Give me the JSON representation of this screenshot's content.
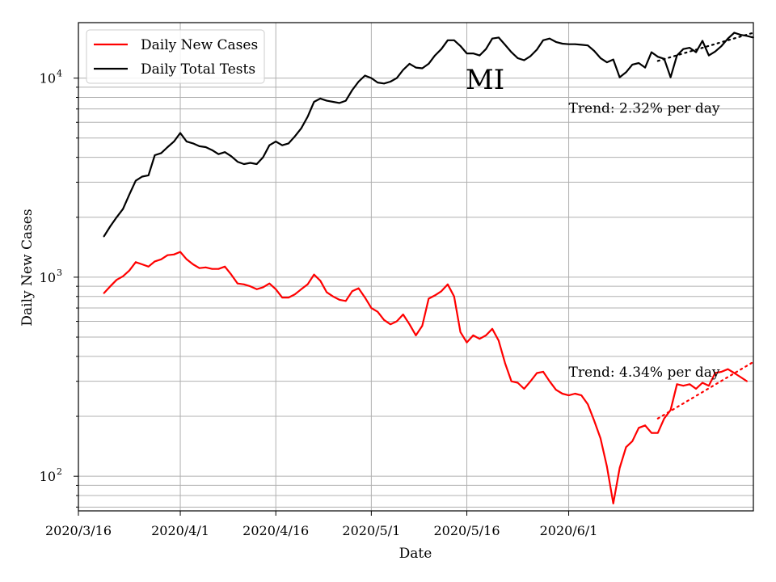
{
  "chart_data": {
    "type": "line",
    "title": "MI",
    "xlabel": "Date",
    "ylabel": "Daily New Cases",
    "yscale": "log",
    "ylim": [
      67,
      19000
    ],
    "xlim": [
      "2020-03-16",
      "2020-06-30"
    ],
    "x_ticks": [
      {
        "date": "2020-03-16",
        "label": "2020/3/16"
      },
      {
        "date": "2020-04-01",
        "label": "2020/4/1"
      },
      {
        "date": "2020-04-16",
        "label": "2020/4/16"
      },
      {
        "date": "2020-05-01",
        "label": "2020/5/1"
      },
      {
        "date": "2020-05-16",
        "label": "2020/5/16"
      },
      {
        "date": "2020-06-01",
        "label": "2020/6/1"
      }
    ],
    "x_grid_dates": [
      "2020-04-01",
      "2020-04-16",
      "2020-05-01",
      "2020-05-16",
      "2020-06-01"
    ],
    "y_ticks": [
      {
        "value": 100,
        "base": "10",
        "exp": "2"
      },
      {
        "value": 1000,
        "base": "10",
        "exp": "3"
      },
      {
        "value": 10000,
        "base": "10",
        "exp": "4"
      }
    ],
    "grid": true,
    "legend": {
      "position": "upper-left"
    },
    "series": [
      {
        "name": "Daily New Cases",
        "color": "#ff0000",
        "start_date": "2020-03-20",
        "values": [
          830,
          900,
          970,
          1010,
          1080,
          1190,
          1160,
          1130,
          1200,
          1230,
          1290,
          1300,
          1340,
          1230,
          1160,
          1110,
          1120,
          1100,
          1100,
          1130,
          1030,
          930,
          920,
          900,
          870,
          890,
          930,
          870,
          790,
          790,
          820,
          870,
          920,
          1030,
          960,
          840,
          800,
          770,
          760,
          850,
          880,
          790,
          700,
          670,
          610,
          580,
          600,
          650,
          580,
          510,
          570,
          780,
          810,
          850,
          920,
          800,
          530,
          470,
          510,
          490,
          510,
          550,
          480,
          370,
          300,
          295,
          275,
          300,
          330,
          335,
          300,
          272,
          260,
          255,
          260,
          255,
          230,
          190,
          155,
          112,
          73,
          110,
          140,
          150,
          175,
          180,
          165,
          165,
          195,
          215,
          290,
          285,
          290,
          275,
          295,
          285,
          330,
          335,
          345,
          330,
          315,
          300
        ]
      },
      {
        "name": "Daily Total Tests",
        "color": "#000000",
        "start_date": "2020-03-20",
        "values": [
          1600,
          1800,
          2000,
          2200,
          2600,
          3050,
          3200,
          3250,
          4100,
          4200,
          4500,
          4800,
          5300,
          4800,
          4700,
          4550,
          4500,
          4350,
          4150,
          4250,
          4050,
          3800,
          3700,
          3750,
          3700,
          4000,
          4600,
          4800,
          4600,
          4700,
          5100,
          5600,
          6400,
          7600,
          7900,
          7700,
          7600,
          7500,
          7700,
          8700,
          9600,
          10300,
          10000,
          9500,
          9400,
          9600,
          10000,
          11000,
          11800,
          11300,
          11200,
          11800,
          13000,
          14000,
          15500,
          15500,
          14500,
          13300,
          13300,
          13000,
          14000,
          15800,
          16000,
          14700,
          13500,
          12600,
          12300,
          12900,
          13900,
          15500,
          15800,
          15200,
          14900,
          14800,
          14800,
          14700,
          14600,
          13700,
          12600,
          12000,
          12400,
          10100,
          10700,
          11700,
          11900,
          11300,
          13500,
          12800,
          12500,
          10100,
          13000,
          14000,
          14200,
          13500,
          15400,
          13000,
          13600,
          14500,
          15800,
          16900,
          16500,
          16300,
          16000
        ]
      }
    ],
    "trend_lines": [
      {
        "color": "#ff0000",
        "style": "dotted",
        "start_date": "2020-06-15",
        "end_date": "2020-06-30",
        "start_value": 195,
        "end_value": 375
      },
      {
        "color": "#000000",
        "style": "dotted",
        "start_date": "2020-06-15",
        "end_date": "2020-06-30",
        "start_value": 12200,
        "end_value": 16900
      }
    ],
    "annotations": [
      {
        "text": "Trend: 2.32% per day",
        "date": "2020-06-01",
        "value": 7100
      },
      {
        "text": "Trend: 4.34% per day",
        "date": "2020-06-01",
        "value": 335
      }
    ]
  }
}
